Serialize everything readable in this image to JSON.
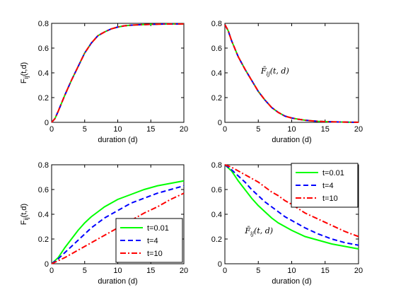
{
  "chart_data": [
    {
      "type": "line",
      "panel": "top-left",
      "xlabel": "duration (d)",
      "ylabel": "F_ij(t,d)",
      "xlim": [
        0,
        20
      ],
      "ylim": [
        0,
        0.8
      ],
      "xticks": [
        0,
        5,
        10,
        15,
        20
      ],
      "yticks": [
        "0",
        "0.2",
        "0.4",
        "0.6",
        "0.8"
      ],
      "legend": "none",
      "annotation": "",
      "series": [
        {
          "color": "#00ff00",
          "dash": "solid",
          "x": [
            0,
            0.5,
            1,
            2,
            3,
            4,
            5,
            6,
            7,
            8,
            9,
            10,
            11,
            12,
            13,
            14,
            15,
            16,
            17,
            18,
            19,
            20
          ],
          "y": [
            0,
            0.03,
            0.09,
            0.22,
            0.34,
            0.45,
            0.56,
            0.64,
            0.7,
            0.73,
            0.755,
            0.77,
            0.78,
            0.785,
            0.788,
            0.79,
            0.792,
            0.793,
            0.794,
            0.795,
            0.795,
            0.795
          ]
        },
        {
          "color": "#0000ff",
          "dash": "dash",
          "x": [
            0,
            0.5,
            1,
            2,
            3,
            4,
            5,
            6,
            7,
            8,
            9,
            10,
            11,
            12,
            13,
            14,
            15,
            16,
            17,
            18,
            19,
            20
          ],
          "y": [
            0,
            0.03,
            0.09,
            0.22,
            0.34,
            0.45,
            0.56,
            0.64,
            0.7,
            0.73,
            0.755,
            0.77,
            0.78,
            0.785,
            0.788,
            0.79,
            0.792,
            0.793,
            0.794,
            0.795,
            0.795,
            0.795
          ]
        },
        {
          "color": "#ff0000",
          "dash": "dashdot",
          "x": [
            0,
            0.5,
            1,
            2,
            3,
            4,
            5,
            6,
            7,
            8,
            9,
            10,
            11,
            12,
            13,
            14,
            15,
            16,
            17,
            18,
            19,
            20
          ],
          "y": [
            0,
            0.03,
            0.09,
            0.22,
            0.34,
            0.45,
            0.56,
            0.64,
            0.7,
            0.73,
            0.755,
            0.77,
            0.78,
            0.785,
            0.788,
            0.79,
            0.792,
            0.793,
            0.794,
            0.795,
            0.795,
            0.795
          ]
        }
      ]
    },
    {
      "type": "line",
      "panel": "top-right",
      "xlabel": "duration (d)",
      "ylabel": "",
      "xlim": [
        0,
        20
      ],
      "ylim": [
        0,
        0.8
      ],
      "xticks": [
        0,
        5,
        10,
        15,
        20
      ],
      "yticks": [
        "0",
        "0.2",
        "0.4",
        "0.6",
        "0.8"
      ],
      "legend": "none",
      "annotation": "F̄ij(t, d)",
      "annotation_pos": [
        5.4,
        0.395
      ],
      "series": [
        {
          "color": "#00ff00",
          "dash": "solid",
          "x": [
            0,
            0.5,
            1,
            2,
            3,
            4,
            5,
            6,
            7,
            8,
            9,
            10,
            11,
            12,
            13,
            14,
            15,
            16,
            17,
            18,
            19,
            20
          ],
          "y": [
            0.79,
            0.74,
            0.66,
            0.53,
            0.43,
            0.34,
            0.25,
            0.18,
            0.12,
            0.08,
            0.05,
            0.035,
            0.025,
            0.017,
            0.012,
            0.008,
            0.006,
            0.004,
            0.003,
            0.002,
            0.001,
            0.001
          ]
        },
        {
          "color": "#0000ff",
          "dash": "dash",
          "x": [
            0,
            0.5,
            1,
            2,
            3,
            4,
            5,
            6,
            7,
            8,
            9,
            10,
            11,
            12,
            13,
            14,
            15,
            16,
            17,
            18,
            19,
            20
          ],
          "y": [
            0.79,
            0.74,
            0.66,
            0.53,
            0.43,
            0.34,
            0.25,
            0.18,
            0.12,
            0.08,
            0.05,
            0.035,
            0.025,
            0.017,
            0.012,
            0.008,
            0.006,
            0.004,
            0.003,
            0.002,
            0.001,
            0.001
          ]
        },
        {
          "color": "#ff0000",
          "dash": "dashdot",
          "x": [
            0,
            0.5,
            1,
            2,
            3,
            4,
            5,
            6,
            7,
            8,
            9,
            10,
            11,
            12,
            13,
            14,
            15,
            16,
            17,
            18,
            19,
            20
          ],
          "y": [
            0.79,
            0.74,
            0.66,
            0.53,
            0.43,
            0.34,
            0.25,
            0.18,
            0.12,
            0.08,
            0.05,
            0.035,
            0.025,
            0.017,
            0.012,
            0.008,
            0.006,
            0.004,
            0.003,
            0.002,
            0.001,
            0.001
          ]
        }
      ]
    },
    {
      "type": "line",
      "panel": "bottom-left",
      "xlabel": "duration (d)",
      "ylabel": "F_ij(t,d)",
      "xlim": [
        0,
        20
      ],
      "ylim": [
        0,
        0.8
      ],
      "xticks": [
        0,
        5,
        10,
        15,
        20
      ],
      "yticks": [
        "0",
        "0.2",
        "0.4",
        "0.6",
        "0.8"
      ],
      "legend": "bottom-right",
      "annotation": "",
      "series": [
        {
          "name": "t=0.01",
          "color": "#00ff00",
          "dash": "solid",
          "x": [
            0,
            1,
            2,
            3,
            4,
            5,
            6,
            7,
            8,
            9,
            10,
            12,
            14,
            16,
            18,
            20
          ],
          "y": [
            0,
            0.05,
            0.13,
            0.2,
            0.27,
            0.33,
            0.38,
            0.42,
            0.46,
            0.49,
            0.52,
            0.56,
            0.6,
            0.63,
            0.65,
            0.67
          ]
        },
        {
          "name": "t=4",
          "color": "#0000ff",
          "dash": "dash",
          "x": [
            0,
            1,
            2,
            3,
            4,
            5,
            6,
            7,
            8,
            9,
            10,
            12,
            14,
            16,
            18,
            20
          ],
          "y": [
            0,
            0.04,
            0.09,
            0.14,
            0.19,
            0.24,
            0.29,
            0.33,
            0.37,
            0.4,
            0.43,
            0.49,
            0.53,
            0.57,
            0.6,
            0.63
          ]
        },
        {
          "name": "t=10",
          "color": "#ff0000",
          "dash": "dashdot",
          "x": [
            0,
            1,
            2,
            3,
            4,
            5,
            6,
            7,
            8,
            9,
            10,
            12,
            14,
            16,
            18,
            20
          ],
          "y": [
            0,
            0.025,
            0.05,
            0.08,
            0.11,
            0.14,
            0.17,
            0.2,
            0.23,
            0.26,
            0.29,
            0.35,
            0.41,
            0.46,
            0.52,
            0.57
          ]
        }
      ]
    },
    {
      "type": "line",
      "panel": "bottom-right",
      "xlabel": "duration (d)",
      "ylabel": "",
      "xlim": [
        0,
        20
      ],
      "ylim": [
        0,
        0.8
      ],
      "xticks": [
        0,
        5,
        10,
        15,
        20
      ],
      "yticks": [
        "0",
        "0.2",
        "0.4",
        "0.6",
        "0.8"
      ],
      "legend": "top-right",
      "annotation": "F̄ij(t, d)",
      "annotation_pos": [
        3.0,
        0.245
      ],
      "series": [
        {
          "name": "t=0.01",
          "color": "#00ff00",
          "dash": "solid",
          "x": [
            0,
            1,
            2,
            3,
            4,
            5,
            6,
            7,
            8,
            9,
            10,
            12,
            14,
            16,
            18,
            20
          ],
          "y": [
            0.8,
            0.75,
            0.67,
            0.6,
            0.53,
            0.47,
            0.42,
            0.37,
            0.33,
            0.3,
            0.27,
            0.22,
            0.19,
            0.16,
            0.14,
            0.12
          ]
        },
        {
          "name": "t=4",
          "color": "#0000ff",
          "dash": "dash",
          "x": [
            0,
            1,
            2,
            3,
            4,
            5,
            6,
            7,
            8,
            9,
            10,
            12,
            14,
            16,
            18,
            20
          ],
          "y": [
            0.8,
            0.76,
            0.71,
            0.66,
            0.6,
            0.55,
            0.5,
            0.46,
            0.42,
            0.38,
            0.35,
            0.29,
            0.24,
            0.2,
            0.17,
            0.15
          ]
        },
        {
          "name": "t=10",
          "color": "#ff0000",
          "dash": "dashdot",
          "x": [
            0,
            1,
            2,
            3,
            4,
            5,
            6,
            7,
            8,
            9,
            10,
            12,
            14,
            16,
            18,
            20
          ],
          "y": [
            0.8,
            0.78,
            0.75,
            0.72,
            0.69,
            0.66,
            0.62,
            0.58,
            0.55,
            0.51,
            0.48,
            0.41,
            0.36,
            0.31,
            0.26,
            0.22
          ]
        }
      ]
    }
  ]
}
